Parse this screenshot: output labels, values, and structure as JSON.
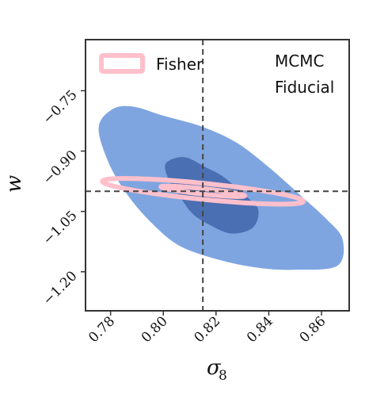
{
  "chart_data": {
    "type": "contour",
    "xlabel": "σ",
    "xlabel_sub": "8",
    "ylabel": "w",
    "xlim": [
      0.7705,
      0.8705
    ],
    "ylim": [
      -1.297,
      -0.623
    ],
    "x_ticks": [
      0.78,
      0.8,
      0.82,
      0.84,
      0.86
    ],
    "x_tick_labels": [
      "0.78",
      "0.80",
      "0.82",
      "0.84",
      "0.86"
    ],
    "y_ticks": [
      -0.75,
      -0.9,
      -1.05,
      -1.2
    ],
    "y_tick_labels": [
      "−0.75",
      "−0.90",
      "−1.05",
      "−1.20"
    ],
    "fiducial": {
      "x": 0.815,
      "y": -1.0
    },
    "legend": {
      "fisher": "Fisher",
      "mcmc": "MCMC",
      "fiducial": "Fiducial"
    },
    "colors": {
      "fisher": "#ffc0cb",
      "mcmc_outer": "#7ea5e0",
      "mcmc_inner": "#4a6fb3",
      "mcmc_text": "#4a74c0",
      "fiducial": "#444444",
      "frame": "#333333"
    },
    "mcmc_outer": [
      [
        0.7755,
        -0.84
      ],
      [
        0.781,
        -0.795
      ],
      [
        0.789,
        -0.79
      ],
      [
        0.8,
        -0.812
      ],
      [
        0.815,
        -0.84
      ],
      [
        0.828,
        -0.88
      ],
      [
        0.84,
        -0.94
      ],
      [
        0.852,
        -1.01
      ],
      [
        0.862,
        -1.07
      ],
      [
        0.868,
        -1.12
      ],
      [
        0.866,
        -1.185
      ],
      [
        0.85,
        -1.195
      ],
      [
        0.836,
        -1.19
      ],
      [
        0.821,
        -1.17
      ],
      [
        0.806,
        -1.135
      ],
      [
        0.795,
        -1.075
      ],
      [
        0.786,
        -1.005
      ],
      [
        0.779,
        -0.925
      ]
    ],
    "mcmc_inner": [
      [
        0.801,
        -0.93
      ],
      [
        0.808,
        -0.915
      ],
      [
        0.816,
        -0.94
      ],
      [
        0.823,
        -0.965
      ],
      [
        0.831,
        -1.01
      ],
      [
        0.836,
        -1.045
      ],
      [
        0.834,
        -1.09
      ],
      [
        0.826,
        -1.105
      ],
      [
        0.818,
        -1.085
      ],
      [
        0.811,
        -1.055
      ],
      [
        0.806,
        -1.01
      ],
      [
        0.802,
        -0.97
      ]
    ],
    "fisher_outer": {
      "cx": 0.815,
      "cy": -1.0,
      "semi_major": 0.047,
      "semi_minor": 0.0163,
      "angle_deg": -38.6
    },
    "fisher_inner": {
      "cx": 0.815,
      "cy": -1.0,
      "semi_major": 0.0198,
      "semi_minor": 0.0055,
      "angle_deg": -38.6
    }
  }
}
